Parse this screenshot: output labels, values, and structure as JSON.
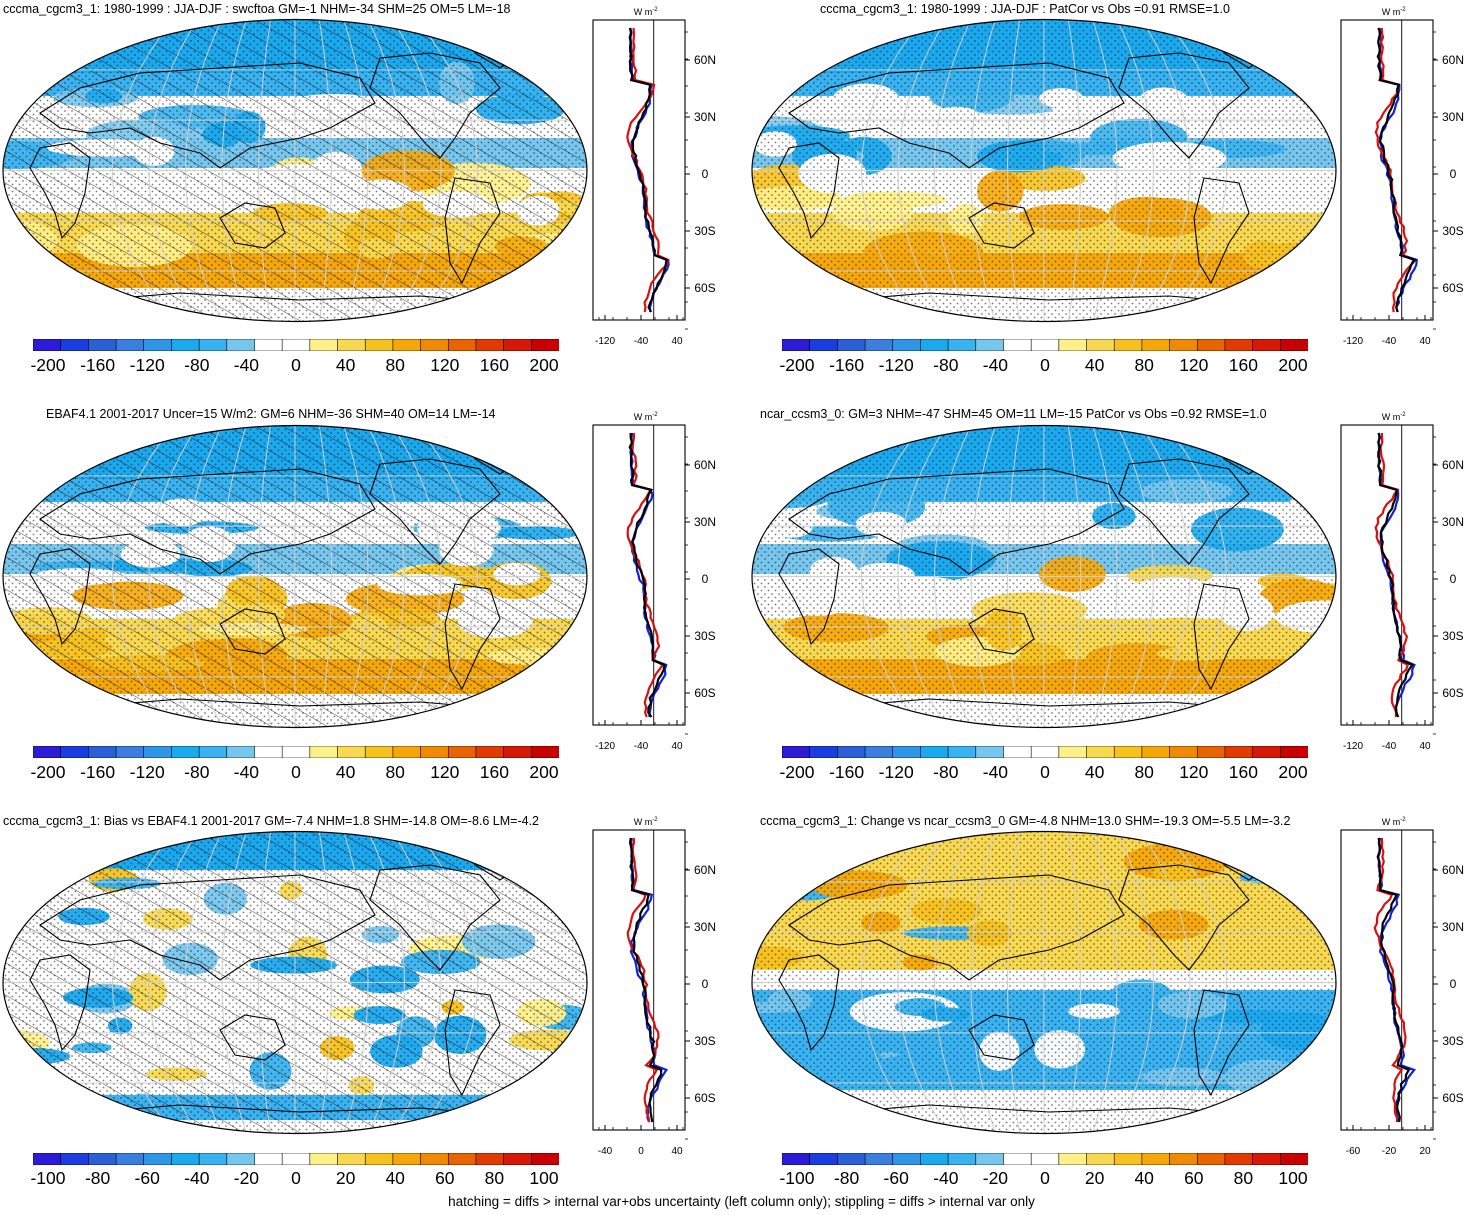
{
  "figure": {
    "footer": "hatching = diffs > internal var+obs uncertainty (left column only); stippling = diffs > internal var only"
  },
  "colors": {
    "palette": [
      "#2c1cd8",
      "#1a3ce0",
      "#2a5fd8",
      "#3a7fe0",
      "#2f95e8",
      "#1aa8ee",
      "#38b2f0",
      "#76c6ee",
      "#ffffff",
      "#ffffff",
      "#fff08a",
      "#f8d850",
      "#f6c11e",
      "#f5a70a",
      "#f08a06",
      "#e86400",
      "#e23a00",
      "#d81806",
      "#c80000"
    ],
    "land_outline": "#000000",
    "zonal_model": "#d81010",
    "zonal_obs": "#1020d8",
    "zonal_ref": "#000000"
  },
  "panels": [
    {
      "title": "cccma_cgcm3_1: 1980-1999 : JJA-DJF : swcftoa GM=-1 NHM=-34 SHM=25 OM=5 LM=-18",
      "pattern": "full",
      "hatch": true,
      "colorbar_labels": [
        "-200",
        "-160",
        "-120",
        "-80",
        "-40",
        "0",
        "40",
        "80",
        "120",
        "160",
        "200"
      ],
      "zonal": {
        "lat_labels": [
          "60N",
          "30N",
          "0",
          "30S",
          "60S"
        ],
        "x_labels": [
          "-120",
          "-40",
          "40"
        ],
        "unit": "W m-2"
      }
    },
    {
      "title": "cccma_cgcm3_1: 1980-1999 : JJA-DJF : PatCor vs Obs =0.91 RMSE=1.0",
      "pattern": "full",
      "hatch": false,
      "colorbar_labels": [
        "-200",
        "-160",
        "-120",
        "-80",
        "-40",
        "0",
        "40",
        "80",
        "120",
        "160",
        "200"
      ],
      "zonal": {
        "lat_labels": [
          "60N",
          "30N",
          "0",
          "30S",
          "60S"
        ],
        "x_labels": [
          "-120",
          "-40",
          "40"
        ],
        "unit": "W m-2"
      }
    },
    {
      "title": "EBAF4.1 2001-2017 Uncer=15 W/m2: GM=6 NHM=-36 SHM=40 OM=14 LM=-14",
      "pattern": "full",
      "hatch": true,
      "colorbar_labels": [
        "-200",
        "-160",
        "-120",
        "-80",
        "-40",
        "0",
        "40",
        "80",
        "120",
        "160",
        "200"
      ],
      "zonal": {
        "lat_labels": [
          "60N",
          "30N",
          "0",
          "30S",
          "60S"
        ],
        "x_labels": [
          "-120",
          "-40",
          "40"
        ],
        "unit": "W m-2"
      }
    },
    {
      "title": "ncar_ccsm3_0: GM=3 NHM=-47 SHM=45 OM=11 LM=-15 PatCor vs Obs =0.92 RMSE=1.0",
      "pattern": "full",
      "hatch": false,
      "colorbar_labels": [
        "-200",
        "-160",
        "-120",
        "-80",
        "-40",
        "0",
        "40",
        "80",
        "120",
        "160",
        "200"
      ],
      "zonal": {
        "lat_labels": [
          "60N",
          "30N",
          "0",
          "30S",
          "60S"
        ],
        "x_labels": [
          "-120",
          "-40",
          "40"
        ],
        "unit": "W m-2"
      }
    },
    {
      "title": "cccma_cgcm3_1: Bias vs EBAF4.1 2001-2017 GM=-7.4 NHM=1.8 SHM=-14.8 OM=-8.6 LM=-4.2",
      "pattern": "diff",
      "hatch": true,
      "colorbar_labels": [
        "-100",
        "-80",
        "-60",
        "-40",
        "-20",
        "0",
        "20",
        "40",
        "60",
        "80",
        "100"
      ],
      "zonal": {
        "lat_labels": [
          "60N",
          "30N",
          "0",
          "30S",
          "60S"
        ],
        "x_labels": [
          "-40",
          "0",
          "40"
        ],
        "unit": "W m-2"
      }
    },
    {
      "title": "cccma_cgcm3_1: Change vs ncar_ccsm3_0 GM=-4.8 NHM=13.0 SHM=-19.3 OM=-5.5 LM=-3.2",
      "pattern": "change",
      "hatch": false,
      "colorbar_labels": [
        "-100",
        "-80",
        "-60",
        "-40",
        "-20",
        "0",
        "20",
        "40",
        "60",
        "80",
        "100"
      ],
      "zonal": {
        "lat_labels": [
          "60N",
          "30N",
          "0",
          "30S",
          "60S"
        ],
        "x_labels": [
          "-60",
          "-20",
          "20"
        ],
        "unit": "W m-2"
      }
    }
  ]
}
